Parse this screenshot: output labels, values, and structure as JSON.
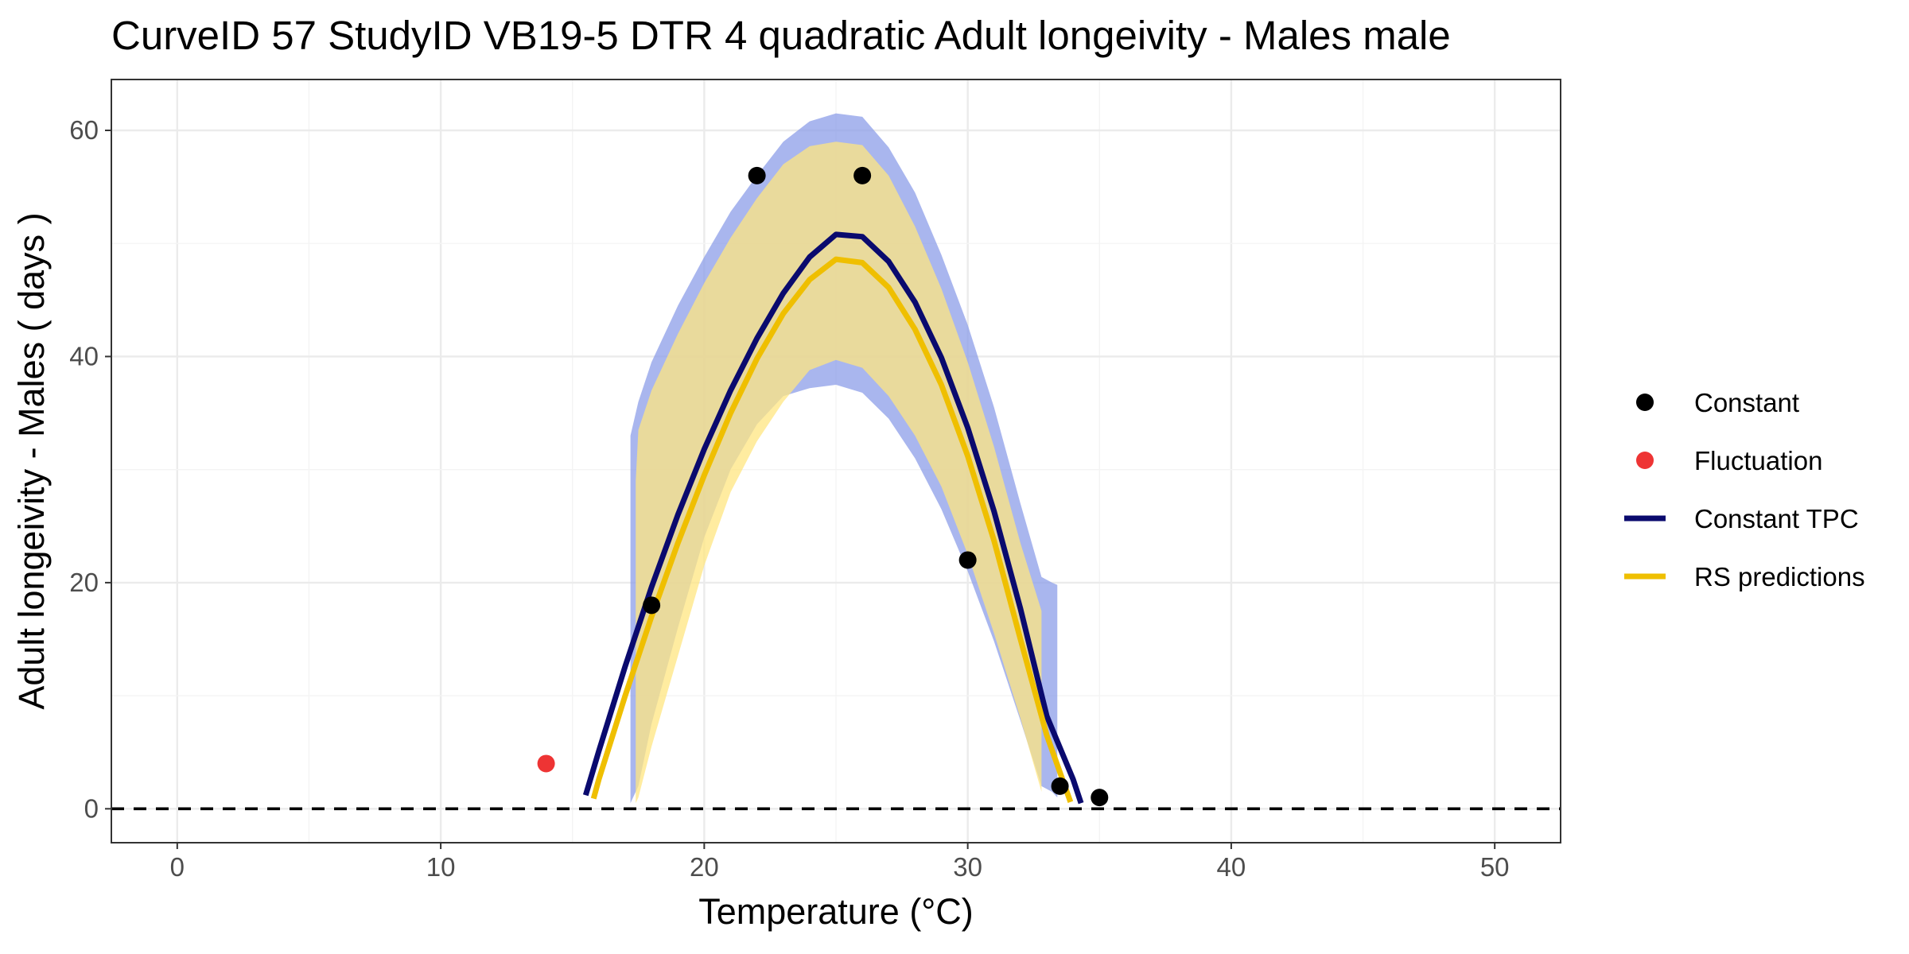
{
  "chart_data": {
    "type": "line",
    "title": "CurveID 57 StudyID VB19-5 DTR 4 quadratic Adult longeivity - Males male",
    "xlabel": "Temperature (°C)",
    "ylabel": "Adult longeivity - Males ( days )",
    "xlim": [
      -2.5,
      52.5
    ],
    "ylim": [
      -3,
      64.5
    ],
    "x_ticks": [
      0,
      10,
      20,
      30,
      40,
      50
    ],
    "x_tick_labels": [
      "0",
      "10",
      "20",
      "30",
      "40",
      "50"
    ],
    "y_ticks": [
      0,
      20,
      40,
      60
    ],
    "y_tick_labels": [
      "0",
      "20",
      "40",
      "60"
    ],
    "grid": true,
    "reference_line": {
      "y": 0,
      "style": "dashed",
      "color": "#000000"
    },
    "legend_position": "right",
    "legend": [
      {
        "label": "Constant",
        "kind": "point",
        "color": "#000000"
      },
      {
        "label": "Fluctuation",
        "kind": "point",
        "color": "#ee3434"
      },
      {
        "label": "Constant TPC",
        "kind": "line",
        "color": "#0a0a6e"
      },
      {
        "label": "RS predictions",
        "kind": "line",
        "color": "#efbf00"
      }
    ],
    "series": [
      {
        "name": "Constant",
        "kind": "points",
        "color": "#000000",
        "points": [
          [
            18,
            18
          ],
          [
            22,
            56
          ],
          [
            26,
            56
          ],
          [
            30,
            22
          ],
          [
            33.5,
            2
          ],
          [
            35,
            1
          ]
        ]
      },
      {
        "name": "Fluctuation",
        "kind": "points",
        "color": "#ee3434",
        "points": [
          [
            14,
            4
          ]
        ]
      },
      {
        "name": "Constant TPC",
        "kind": "line",
        "color": "#0a0a6e",
        "x": [
          15.5,
          16,
          17,
          18,
          19,
          20,
          21,
          22,
          23,
          24,
          25,
          26,
          27,
          28,
          29,
          30,
          31,
          32,
          33,
          34,
          34.3
        ],
        "y": [
          1.2,
          5.1,
          12.6,
          19.6,
          26.0,
          31.8,
          37.0,
          41.6,
          45.6,
          48.8,
          50.8,
          50.6,
          48.4,
          44.8,
          39.9,
          33.7,
          26.3,
          17.7,
          8.2,
          2.6,
          0.5
        ]
      },
      {
        "name": "RS predictions",
        "kind": "line",
        "color": "#efbf00",
        "x": [
          15.8,
          16,
          17,
          18,
          19,
          20,
          21,
          22,
          23,
          24,
          25,
          26,
          27,
          28,
          29,
          30,
          31,
          32,
          33,
          33.9
        ],
        "y": [
          0.9,
          2.6,
          10.0,
          17.0,
          23.5,
          29.5,
          35.0,
          39.8,
          43.8,
          46.8,
          48.6,
          48.3,
          46.1,
          42.4,
          37.5,
          31.2,
          23.7,
          15.0,
          6.5,
          0.6
        ]
      },
      {
        "name": "",
        "kind": "band",
        "color": "#8c9ee8",
        "x": [
          17.2,
          17.5,
          18,
          19,
          20,
          21,
          22,
          23,
          24,
          25,
          26,
          27,
          28,
          29,
          30,
          31,
          32,
          32.8,
          33.2,
          33.4
        ],
        "y_upper": [
          33.0,
          36.0,
          39.5,
          44.5,
          48.8,
          52.8,
          56.0,
          59.0,
          60.8,
          61.5,
          61.2,
          58.5,
          54.5,
          49.0,
          42.8,
          35.5,
          27.0,
          20.5,
          20.0,
          19.8
        ],
        "y_lower": [
          0.5,
          2.0,
          7.5,
          16.0,
          24.0,
          30.0,
          34.0,
          36.5,
          37.2,
          37.5,
          36.8,
          34.5,
          31.0,
          26.5,
          21.0,
          14.8,
          7.8,
          2.0,
          1.5,
          1.0
        ]
      },
      {
        "name": "",
        "kind": "band",
        "color": "#ffe680",
        "x": [
          17.4,
          17.5,
          18,
          19,
          20,
          21,
          22,
          23,
          24,
          25,
          26,
          27,
          28,
          29,
          30,
          31,
          32,
          32.8
        ],
        "y_upper": [
          29.0,
          33.5,
          37.0,
          42.0,
          46.5,
          50.5,
          54.0,
          57.0,
          58.6,
          59.0,
          58.7,
          56.0,
          51.5,
          46.0,
          39.5,
          32.0,
          23.5,
          17.5
        ],
        "y_lower": [
          0.5,
          1.0,
          5.5,
          13.5,
          21.5,
          28.0,
          32.5,
          36.0,
          38.8,
          39.7,
          39.0,
          36.5,
          33.0,
          28.5,
          22.5,
          15.5,
          8.0,
          1.5
        ]
      }
    ]
  }
}
